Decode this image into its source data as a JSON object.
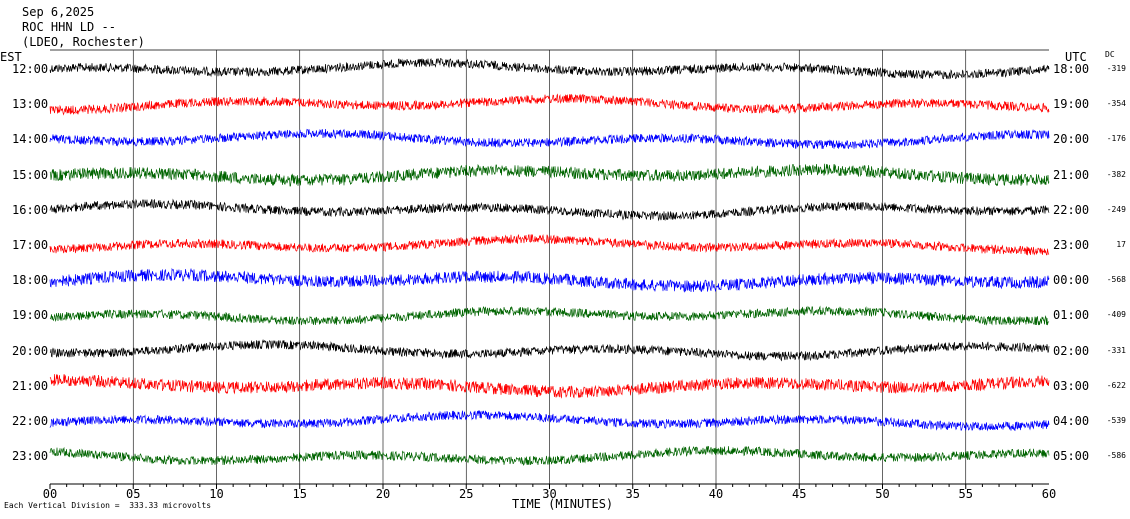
{
  "header": {
    "date": "Sep 6,2025",
    "station": "ROC HHN LD --",
    "network": "(LDEO, Rochester)"
  },
  "left_tz": "EST",
  "right_tz": "UTC",
  "dc_header": "DC",
  "footer": {
    "xlabel": "TIME (MINUTES)",
    "scale_note": "Each Vertical Division =  333.33 microvolts"
  },
  "chart_data": {
    "type": "line",
    "xlabel": "TIME (MINUTES)",
    "xlim": [
      0,
      60
    ],
    "x_ticks": [
      "00",
      "05",
      "10",
      "15",
      "20",
      "25",
      "30",
      "35",
      "40",
      "45",
      "50",
      "55",
      "60"
    ],
    "grid": "vertical lines every 5 minutes",
    "colors": [
      "#000000",
      "#ff0000",
      "#0000ff",
      "#006400"
    ],
    "rows": [
      {
        "est": "12:00",
        "utc": "18:00",
        "dc": "-319",
        "color": "#000000"
      },
      {
        "est": "13:00",
        "utc": "19:00",
        "dc": "-354",
        "color": "#ff0000"
      },
      {
        "est": "14:00",
        "utc": "20:00",
        "dc": "-176",
        "color": "#0000ff"
      },
      {
        "est": "15:00",
        "utc": "21:00",
        "dc": "-382",
        "color": "#006400"
      },
      {
        "est": "16:00",
        "utc": "22:00",
        "dc": "-249",
        "color": "#000000"
      },
      {
        "est": "17:00",
        "utc": "23:00",
        "dc": "17",
        "color": "#ff0000"
      },
      {
        "est": "18:00",
        "utc": "00:00",
        "dc": "-568",
        "color": "#0000ff"
      },
      {
        "est": "19:00",
        "utc": "01:00",
        "dc": "-409",
        "color": "#006400"
      },
      {
        "est": "20:00",
        "utc": "02:00",
        "dc": "-331",
        "color": "#000000"
      },
      {
        "est": "21:00",
        "utc": "03:00",
        "dc": "-622",
        "color": "#ff0000"
      },
      {
        "est": "22:00",
        "utc": "04:00",
        "dc": "-539",
        "color": "#0000ff"
      },
      {
        "est": "23:00",
        "utc": "05:00",
        "dc": "-586",
        "color": "#006400"
      }
    ]
  }
}
